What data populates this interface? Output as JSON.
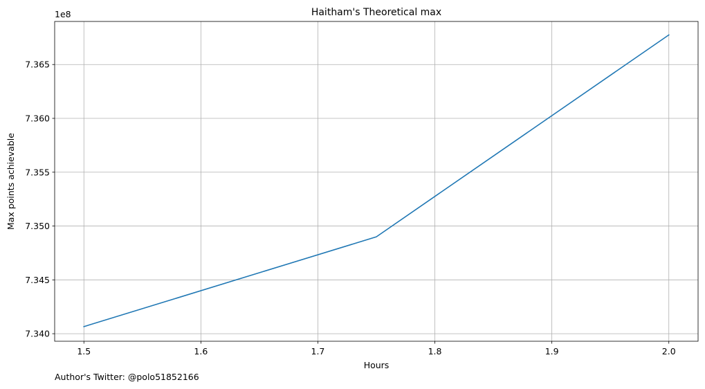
{
  "chart_data": {
    "type": "line",
    "title": "Haitham's Theoretical max",
    "xlabel": "Hours",
    "ylabel": "Max points achievable",
    "y_offset_label": "1e8",
    "x": [
      1.5,
      1.75,
      2.0
    ],
    "series": [
      {
        "values": [
          734066000,
          734900000,
          736775000
        ],
        "color": "#1f77b4"
      }
    ],
    "xlim": [
      1.475,
      2.025
    ],
    "ylim": [
      733930000,
      736900000
    ],
    "x_ticks": [
      1.5,
      1.6,
      1.7,
      1.8,
      1.9,
      2.0
    ],
    "x_tick_labels": [
      "1.5",
      "1.6",
      "1.7",
      "1.8",
      "1.9",
      "2.0"
    ],
    "y_ticks": [
      734000000,
      734500000,
      735000000,
      735500000,
      736000000,
      736500000
    ],
    "y_tick_labels": [
      "7.340",
      "7.345",
      "7.350",
      "7.355",
      "7.360",
      "7.365"
    ],
    "grid": true
  },
  "footer": {
    "text": "Author's Twitter: @polo51852166"
  }
}
